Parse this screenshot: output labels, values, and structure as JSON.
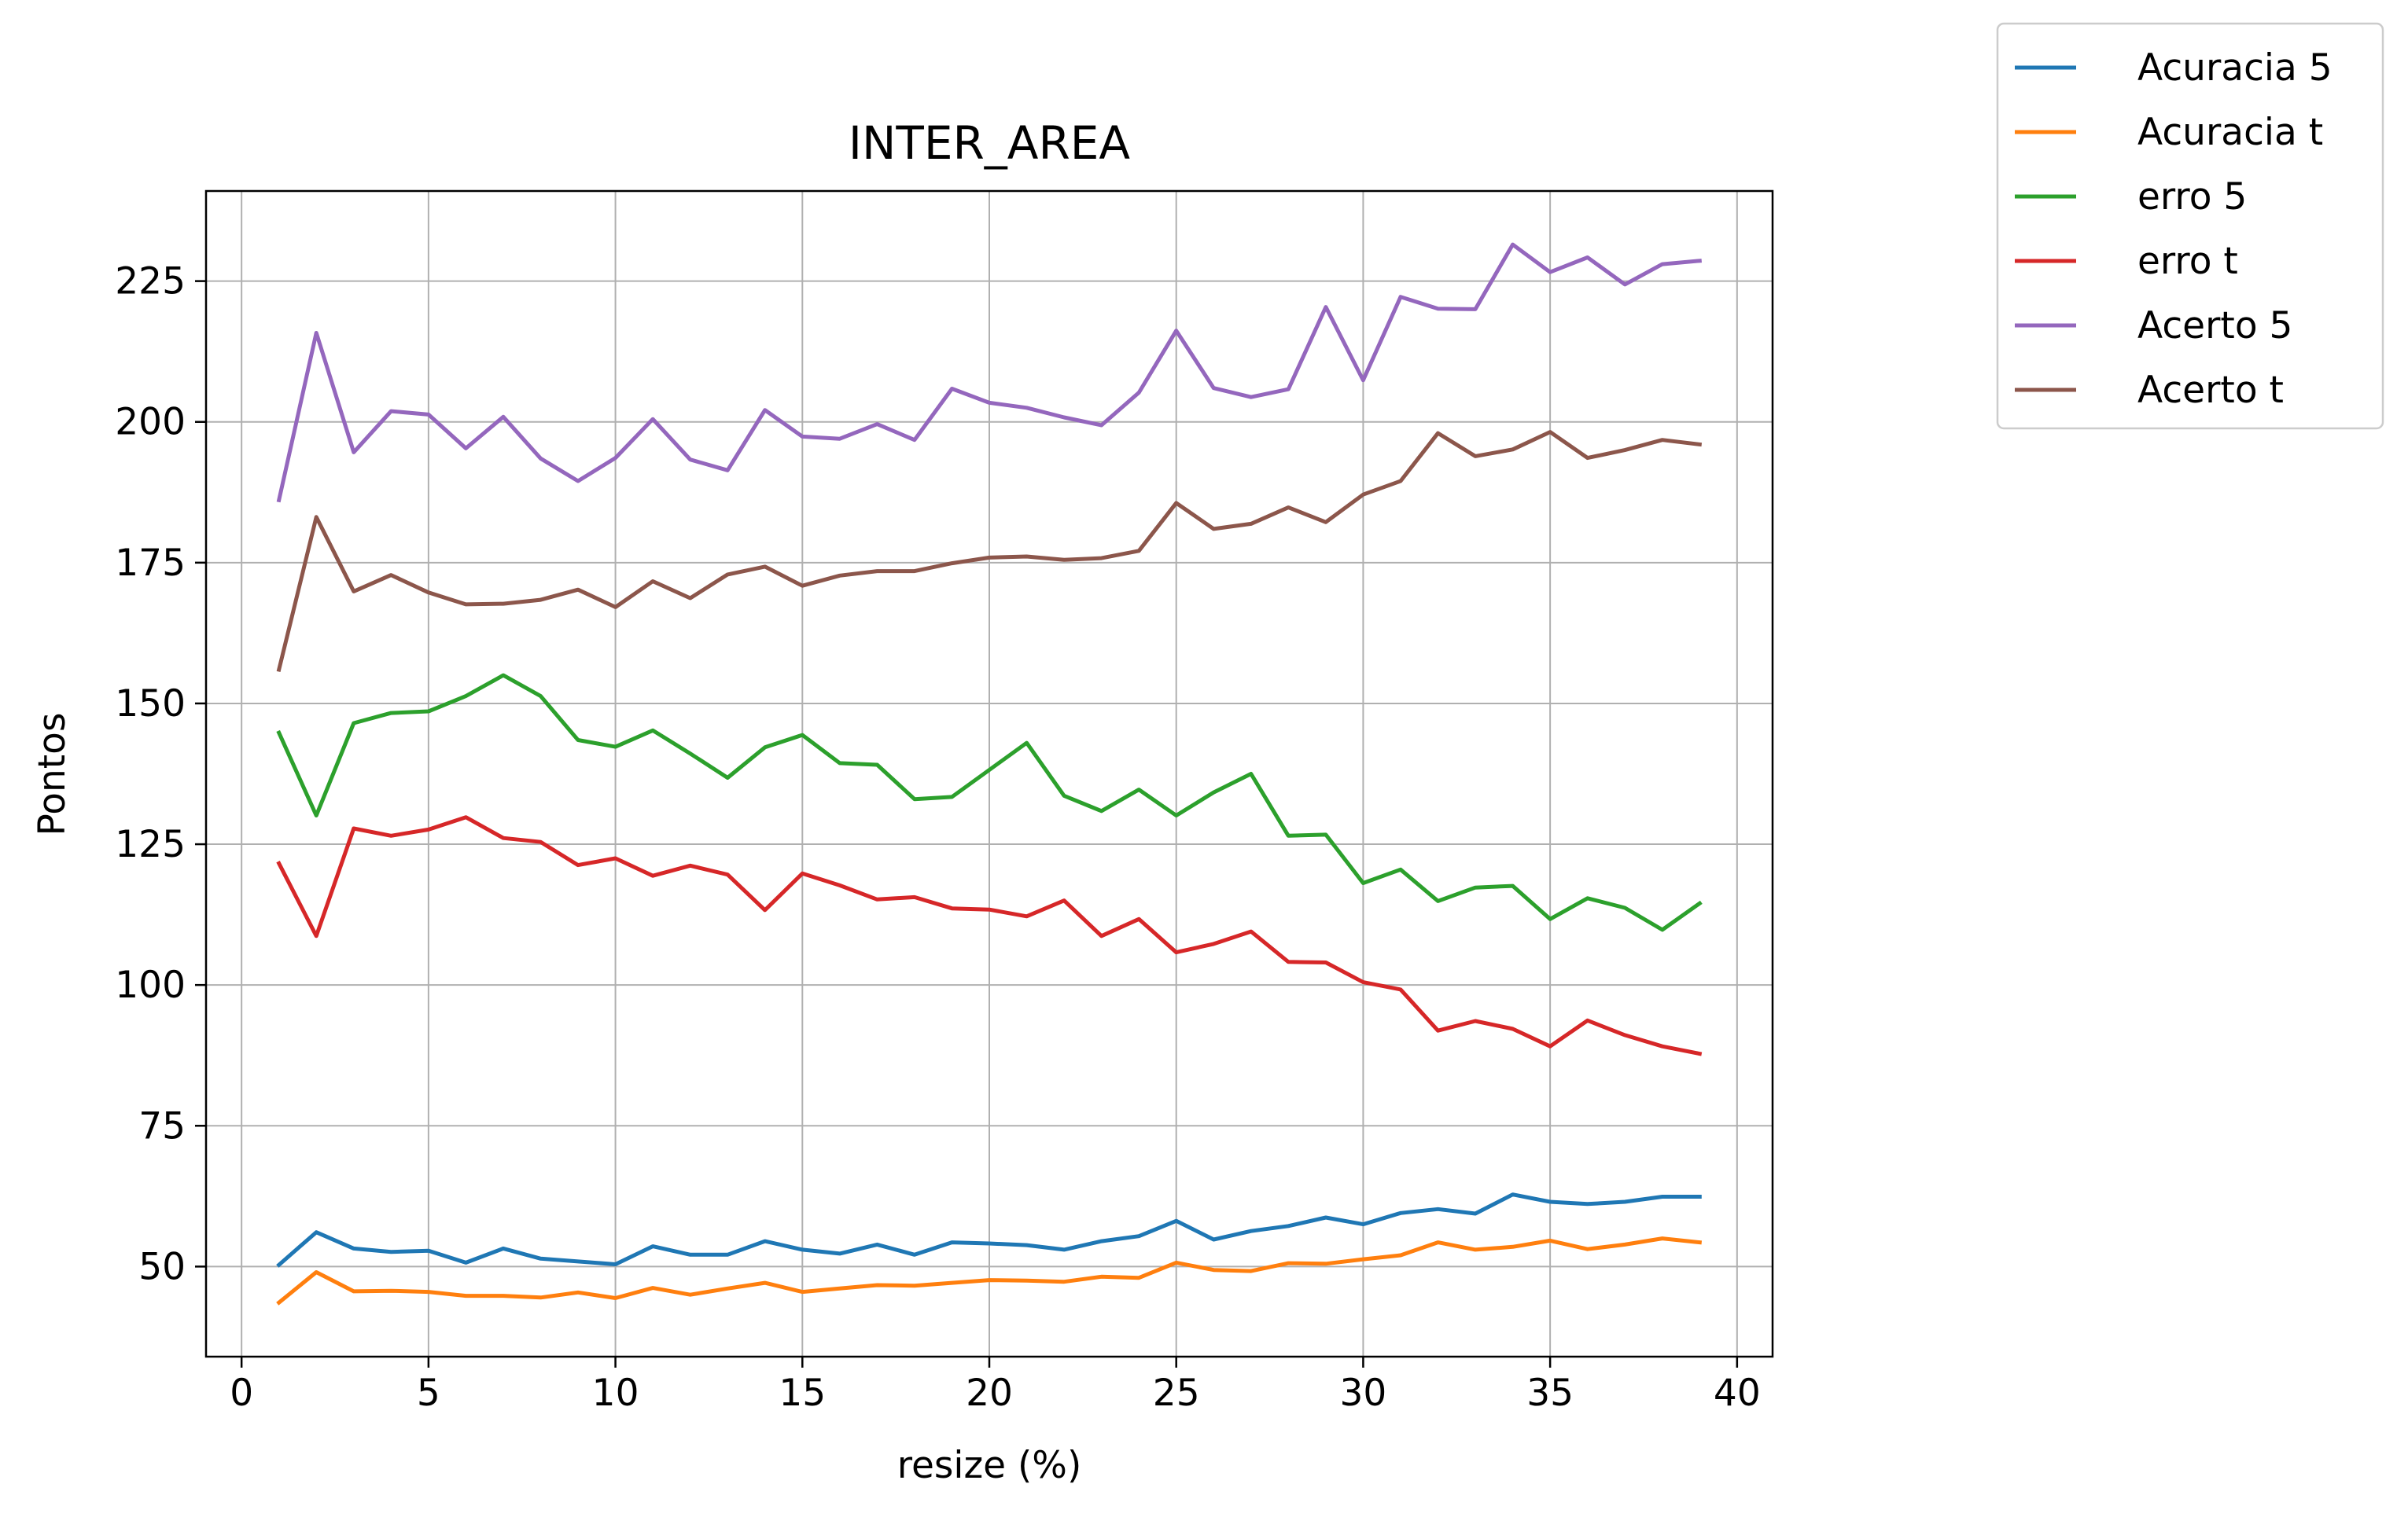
{
  "chart_data": {
    "type": "line",
    "title": "INTER_AREA",
    "xlabel": "resize (%)",
    "ylabel": "Pontos",
    "xlim": [
      -0.95,
      40.95
    ],
    "ylim": [
      34,
      241
    ],
    "xticks": [
      0,
      5,
      10,
      15,
      20,
      25,
      30,
      35,
      40
    ],
    "yticks": [
      50,
      75,
      100,
      125,
      150,
      175,
      200,
      225
    ],
    "grid": true,
    "legend_position": "outside-top-right",
    "x": [
      1,
      2,
      3,
      4,
      5,
      6,
      7,
      8,
      9,
      10,
      11,
      12,
      13,
      14,
      15,
      16,
      17,
      18,
      19,
      20,
      21,
      22,
      23,
      24,
      25,
      26,
      27,
      28,
      29,
      30,
      31,
      32,
      33,
      34,
      35,
      36,
      37,
      38,
      39
    ],
    "series": [
      {
        "name": "Acuracia 5",
        "color": "#1f77b4",
        "values": [
          50.3,
          56.1,
          53.2,
          52.6,
          52.8,
          50.7,
          53.2,
          51.4,
          50.9,
          50.4,
          53.6,
          52.1,
          52.1,
          54.5,
          53.0,
          52.3,
          53.9,
          52.1,
          54.3,
          54.1,
          53.8,
          53.0,
          54.5,
          55.4,
          58.1,
          54.8,
          56.3,
          57.2,
          58.7,
          57.5,
          59.5,
          60.2,
          59.4,
          62.8,
          61.5,
          61.1,
          61.5,
          62.4,
          62.4
        ]
      },
      {
        "name": "Acuracia t",
        "color": "#ff7f0e",
        "values": [
          43.6,
          49.0,
          45.6,
          45.7,
          45.5,
          44.8,
          44.8,
          44.5,
          45.4,
          44.4,
          46.2,
          45.0,
          46.1,
          47.1,
          45.5,
          46.1,
          46.7,
          46.6,
          47.1,
          47.6,
          47.5,
          47.3,
          48.2,
          48.0,
          50.7,
          49.4,
          49.2,
          50.6,
          50.5,
          51.3,
          52.0,
          54.3,
          53.0,
          53.5,
          54.6,
          53.1,
          53.9,
          55.0,
          54.3
        ]
      },
      {
        "name": "erro 5",
        "color": "#2ca02c",
        "values": [
          144.8,
          130.1,
          146.5,
          148.3,
          148.6,
          151.3,
          155.0,
          151.3,
          143.5,
          142.3,
          145.2,
          141.1,
          136.8,
          142.2,
          144.4,
          139.4,
          139.1,
          133.0,
          133.4,
          138.2,
          143.0,
          133.6,
          130.9,
          134.7,
          130.1,
          134.2,
          137.5,
          126.5,
          126.7,
          118.1,
          120.5,
          114.9,
          117.3,
          117.6,
          111.7,
          115.4,
          113.7,
          109.8,
          114.5
        ]
      },
      {
        "name": "erro t",
        "color": "#d62728",
        "values": [
          121.6,
          108.7,
          127.8,
          126.5,
          127.6,
          129.8,
          126.1,
          125.4,
          121.3,
          122.5,
          119.4,
          121.2,
          119.6,
          113.3,
          119.8,
          117.7,
          115.2,
          115.6,
          113.6,
          113.4,
          112.2,
          115.0,
          108.7,
          111.7,
          105.8,
          107.3,
          109.5,
          104.1,
          104.0,
          100.5,
          99.2,
          91.9,
          93.6,
          92.2,
          89.1,
          93.7,
          91.1,
          89.1,
          87.8
        ]
      },
      {
        "name": "Acerto 5",
        "color": "#9467bd",
        "values": [
          186.1,
          215.8,
          194.6,
          201.9,
          201.3,
          195.3,
          200.9,
          193.5,
          189.5,
          193.6,
          200.5,
          193.3,
          191.4,
          202.1,
          197.4,
          197.0,
          199.6,
          196.8,
          205.9,
          203.4,
          202.5,
          200.8,
          199.4,
          205.2,
          216.2,
          206.0,
          204.4,
          205.8,
          220.4,
          207.4,
          222.2,
          220.1,
          220.0,
          231.5,
          226.6,
          229.2,
          224.4,
          228.0,
          228.6
        ]
      },
      {
        "name": "Acerto t",
        "color": "#8c564b",
        "values": [
          156.0,
          183.1,
          169.9,
          172.8,
          169.7,
          167.6,
          167.7,
          168.4,
          170.2,
          167.1,
          171.7,
          168.7,
          172.9,
          174.3,
          170.9,
          172.7,
          173.5,
          173.5,
          174.9,
          175.9,
          176.1,
          175.5,
          175.8,
          177.1,
          185.6,
          181.0,
          181.9,
          184.8,
          182.2,
          187.1,
          189.5,
          198.0,
          193.9,
          195.1,
          198.2,
          193.6,
          195.0,
          196.8,
          196.0
        ]
      }
    ]
  }
}
